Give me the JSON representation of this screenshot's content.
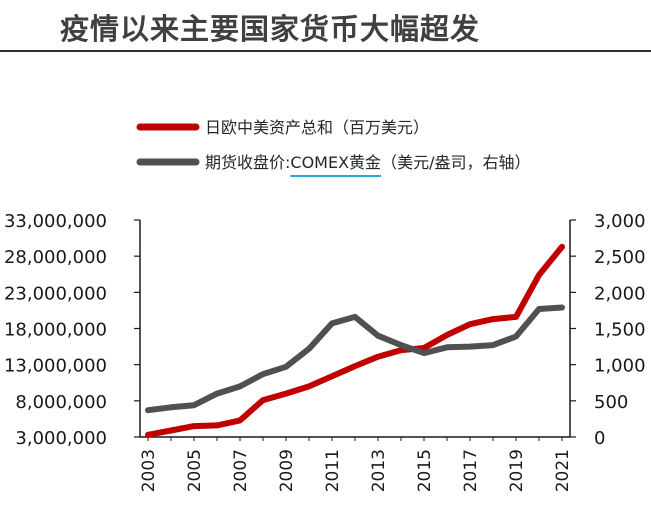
{
  "page": {
    "title": "疫情以来主要国家货币大幅超发"
  },
  "chart_data": {
    "type": "line",
    "title": "",
    "x": [
      2003,
      2004,
      2005,
      2006,
      2007,
      2008,
      2009,
      2010,
      2011,
      2012,
      2013,
      2014,
      2015,
      2016,
      2017,
      2018,
      2019,
      2020,
      2021
    ],
    "x_tick_labels": [
      "2003",
      "2005",
      "2007",
      "2009",
      "2011",
      "2013",
      "2015",
      "2017",
      "2019",
      "2021"
    ],
    "y_left": {
      "ylim": [
        3000000,
        33000000
      ],
      "tick_labels": [
        "3,000,000",
        "8,000,000",
        "13,000,000",
        "18,000,000",
        "23,000,000",
        "28,000,000",
        "33,000,000"
      ]
    },
    "y_right": {
      "ylim": [
        0,
        3000
      ],
      "tick_labels": [
        "0",
        "500",
        "1,000",
        "1,500",
        "2,000",
        "2,500",
        "3,000"
      ]
    },
    "legend": {
      "position": "top",
      "items": [
        {
          "label": "日欧中美资产总和（百万美元）",
          "color": "#c00000",
          "axis": "left"
        },
        {
          "label_prefix": "期货收盘价:",
          "label_highlight": "COMEX黄金",
          "label_suffix": "（美元/盎司，右轴）",
          "color": "#505050",
          "axis": "right"
        }
      ]
    },
    "series": [
      {
        "name": "日欧中美资产总和（百万美元）",
        "axis": "left",
        "color": "#c00000",
        "values": [
          3300000,
          3900000,
          4500000,
          4600000,
          5300000,
          8100000,
          9000000,
          10000000,
          11400000,
          12800000,
          14100000,
          15000000,
          15300000,
          17100000,
          18600000,
          19300000,
          19600000,
          25400000,
          29300000
        ]
      },
      {
        "name": "期货收盘价:COMEX黄金（美元/盎司，右轴）",
        "axis": "right",
        "color": "#505050",
        "values": [
          370,
          410,
          440,
          600,
          700,
          870,
          970,
          1220,
          1570,
          1660,
          1400,
          1270,
          1160,
          1240,
          1250,
          1270,
          1390,
          1770,
          1790
        ]
      }
    ]
  }
}
